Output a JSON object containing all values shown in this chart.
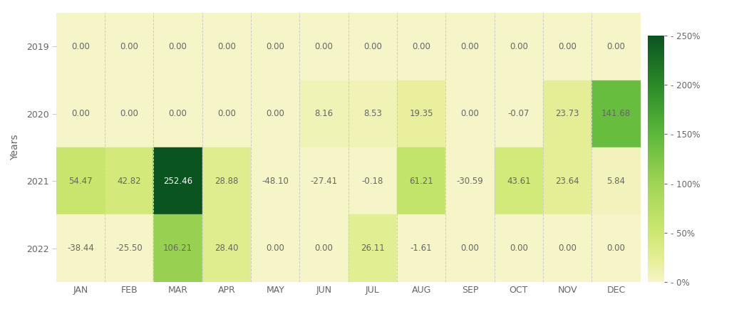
{
  "years": [
    2019,
    2020,
    2021,
    2022
  ],
  "months": [
    "JAN",
    "FEB",
    "MAR",
    "APR",
    "MAY",
    "JUN",
    "JUL",
    "AUG",
    "SEP",
    "OCT",
    "NOV",
    "DEC"
  ],
  "values": [
    [
      0.0,
      0.0,
      0.0,
      0.0,
      0.0,
      0.0,
      0.0,
      0.0,
      0.0,
      0.0,
      0.0,
      0.0
    ],
    [
      0.0,
      0.0,
      0.0,
      0.0,
      0.0,
      8.16,
      8.53,
      19.35,
      0.0,
      -0.07,
      23.73,
      141.68
    ],
    [
      54.47,
      42.82,
      252.46,
      28.88,
      -48.1,
      -27.41,
      -0.18,
      61.21,
      -30.59,
      43.61,
      23.64,
      5.84
    ],
    [
      -38.44,
      -25.5,
      106.21,
      28.4,
      0.0,
      0.0,
      26.11,
      -1.61,
      0.0,
      0.0,
      0.0,
      0.0
    ]
  ],
  "ylabel": "Years",
  "vmin": 0,
  "vmax": 250,
  "clip_low": -50,
  "cbar_ticks": [
    0,
    50,
    100,
    150,
    200,
    250
  ],
  "cbar_labels": [
    "- 0%",
    "- 50%",
    "- 100%",
    "- 150%",
    "- 200%",
    "- 250%"
  ],
  "colormap_colors": [
    [
      0.0,
      "#f5f5c8"
    ],
    [
      0.08,
      "#e8ef9a"
    ],
    [
      0.2,
      "#cce870"
    ],
    [
      0.4,
      "#a0d455"
    ],
    [
      0.6,
      "#5cb83a"
    ],
    [
      0.8,
      "#2a8a28"
    ],
    [
      1.0,
      "#0a5420"
    ]
  ],
  "neg_color": "#f0f0b0",
  "background_color": "#ffffff",
  "text_color": "#666666",
  "grid_color": "#cccccc",
  "figsize": [
    10.51,
    4.55
  ],
  "dpi": 100
}
